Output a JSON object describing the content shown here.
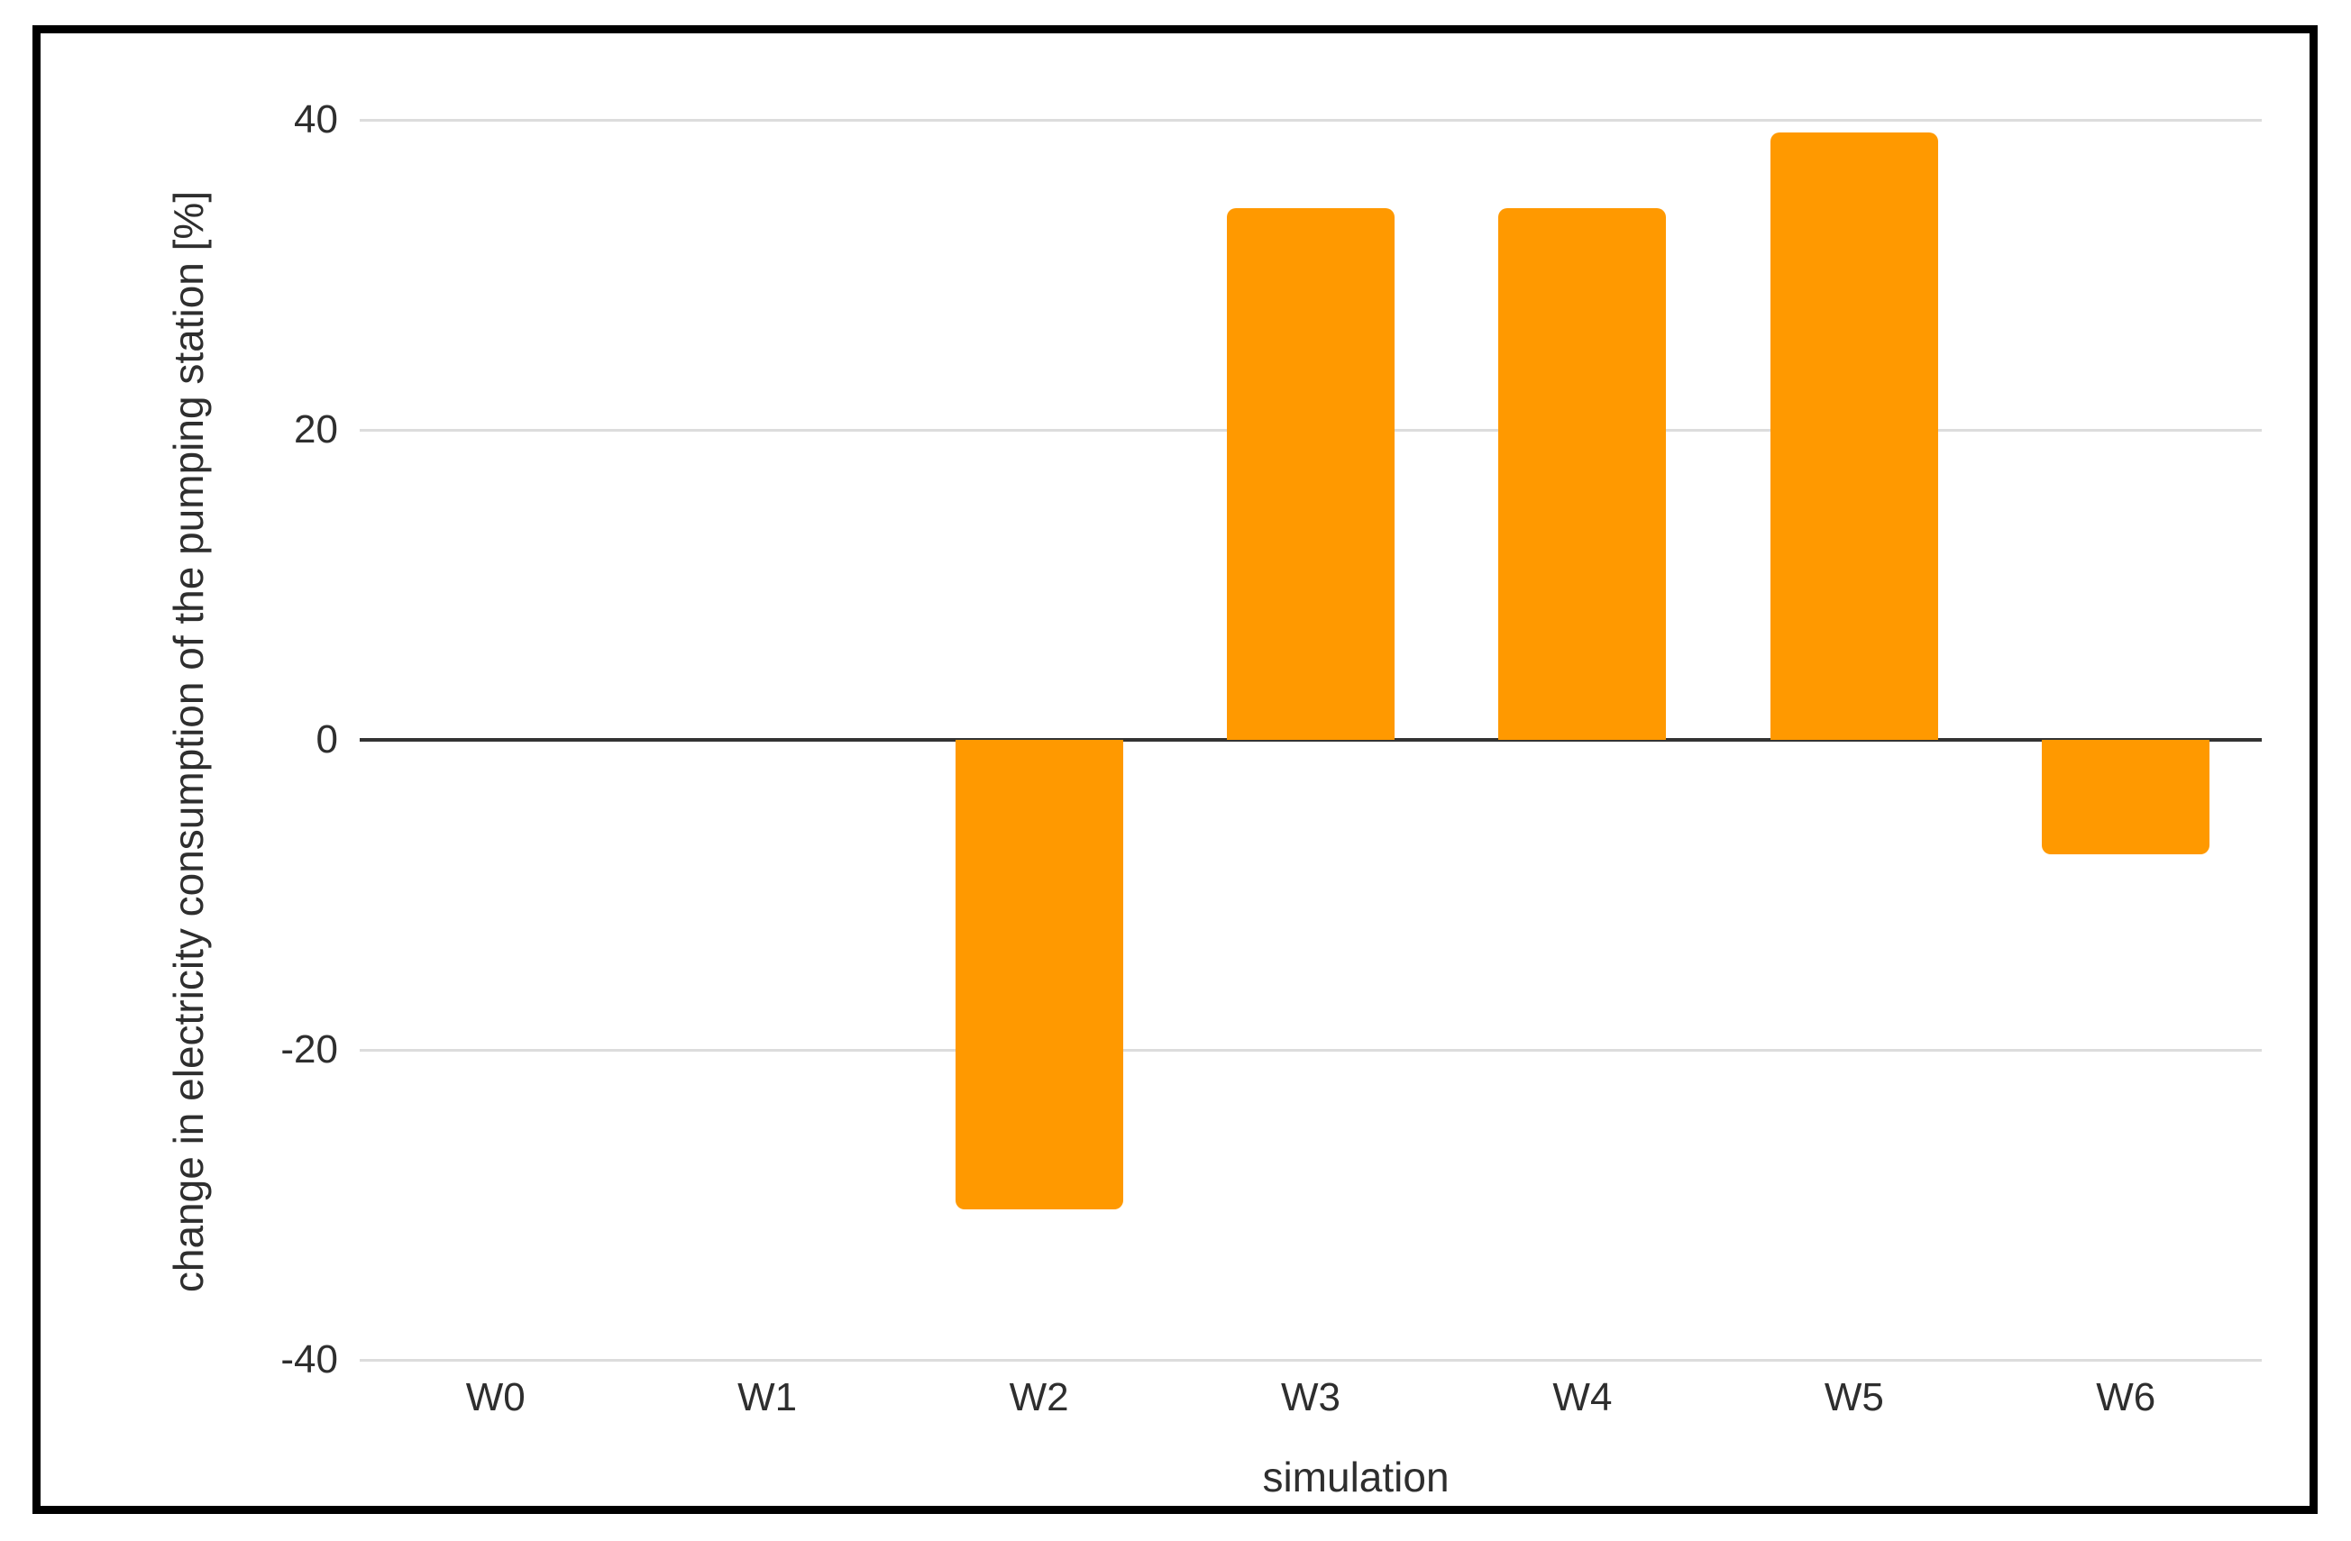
{
  "chart_data": {
    "type": "bar",
    "title": "",
    "xlabel": "simulation",
    "ylabel": "change in electricity consumption of the pumping station [%]",
    "categories": [
      "W0",
      "W1",
      "W2",
      "W3",
      "W4",
      "W5",
      "W6"
    ],
    "values": [
      0,
      0,
      -30.3,
      34.3,
      34.3,
      39.2,
      -7.4
    ],
    "ylim": [
      -40,
      40
    ],
    "yticks": [
      40,
      20,
      0,
      -20,
      -40
    ],
    "grid": true,
    "legend_position": "none",
    "bar_color": "#FF9900"
  },
  "colors": {
    "bar": "#FF9900",
    "gridline": "#dcdcdc",
    "zero_line": "#333333",
    "text": "#2e2e2e",
    "frame_border": "#000000",
    "background": "#ffffff"
  }
}
